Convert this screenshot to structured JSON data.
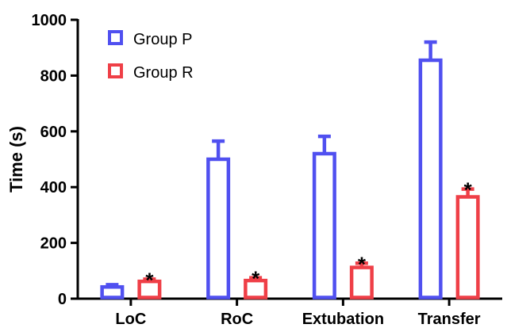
{
  "chart_data": {
    "type": "bar",
    "categories": [
      "LoC",
      "RoC",
      "Extubation",
      "Transfer"
    ],
    "series": [
      {
        "name": "Group P",
        "color": "#5050f0",
        "values": [
          42,
          500,
          520,
          855
        ],
        "error": [
          8,
          65,
          62,
          65
        ]
      },
      {
        "name": "Group R",
        "color": "#ef3f47",
        "values": [
          62,
          65,
          112,
          365
        ],
        "error": [
          8,
          10,
          15,
          28
        ]
      }
    ],
    "significance": [
      "*",
      "*",
      "*",
      "*"
    ],
    "ylabel": "Time (s)",
    "xlabel": "",
    "title": "",
    "ylim": [
      0,
      1000
    ],
    "yticks": [
      0,
      200,
      400,
      600,
      800,
      1000
    ],
    "legend_position": "top-left",
    "grid": false
  }
}
